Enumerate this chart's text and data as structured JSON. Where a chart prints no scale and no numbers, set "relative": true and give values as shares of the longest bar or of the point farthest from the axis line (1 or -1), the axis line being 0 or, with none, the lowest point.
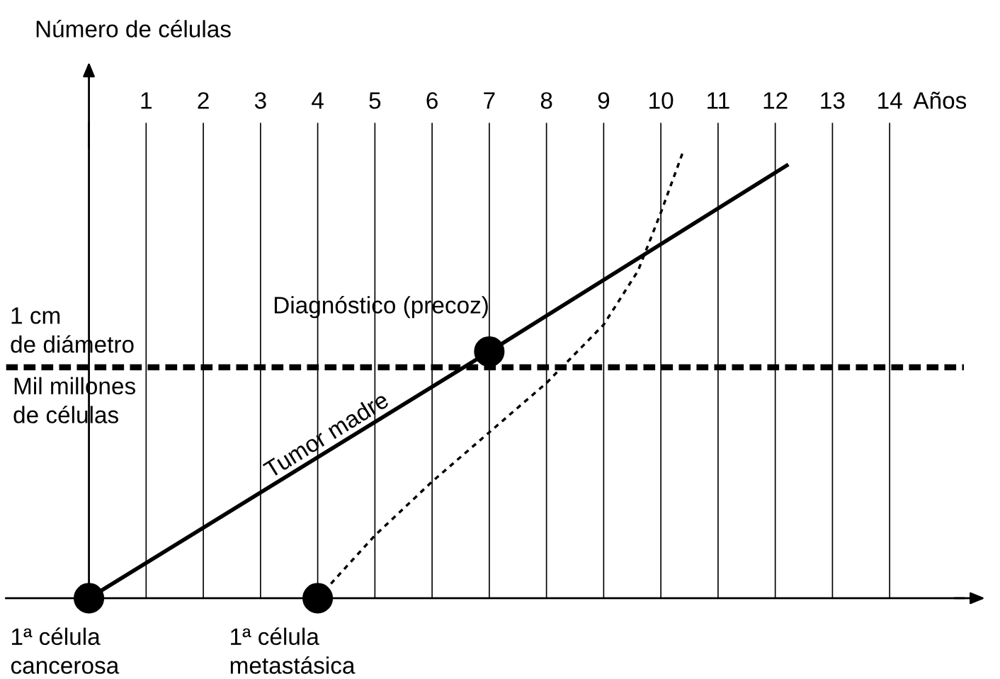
{
  "chart_data": {
    "type": "line",
    "relative": true,
    "xlabel": "Años",
    "ylabel": "Número de células",
    "xlim": [
      -1.45,
      15.3
    ],
    "xticks": [
      1,
      2,
      3,
      4,
      5,
      6,
      7,
      8,
      9,
      10,
      11,
      12,
      13,
      14
    ],
    "grid": "x",
    "legend": false,
    "tick_labels": "x",
    "series": [
      {
        "name": "Tumor madre",
        "color": "#000000",
        "line_style": "solid",
        "marker": "none",
        "x": [
          0,
          7,
          12.2
        ],
        "values": [
          0,
          0.55,
          0.965
        ]
      },
      {
        "color": "#000000",
        "line_style": "dotted",
        "marker": "none",
        "x": [
          4,
          5,
          6,
          7,
          8,
          9,
          9.6,
          10,
          10.4
        ],
        "values": [
          0,
          0.14,
          0.26,
          0.37,
          0.48,
          0.61,
          0.73,
          0.86,
          1
        ]
      },
      {
        "color": "#000000",
        "type": "scatter",
        "marker": "circle",
        "x": [
          0,
          4,
          7
        ],
        "values": [
          0,
          0,
          0.55
        ]
      }
    ],
    "ref_lines": [
      {
        "axis": "y",
        "value": 0.515,
        "label": "1 cm\nde diámetro",
        "color": "#000000",
        "line_style": "dashed"
      }
    ],
    "annotations": [
      {
        "text": "Mil millones\nde células",
        "x": -1.4,
        "y": 0.515
      },
      {
        "text": "Diagnóstico (precoz)",
        "x": 7,
        "y": 0.55
      },
      {
        "text": "1ª célula\ncancerosa",
        "x": 0,
        "y": 0
      },
      {
        "text": "1ª célula\nmetastásica",
        "x": 4,
        "y": 0
      }
    ]
  }
}
